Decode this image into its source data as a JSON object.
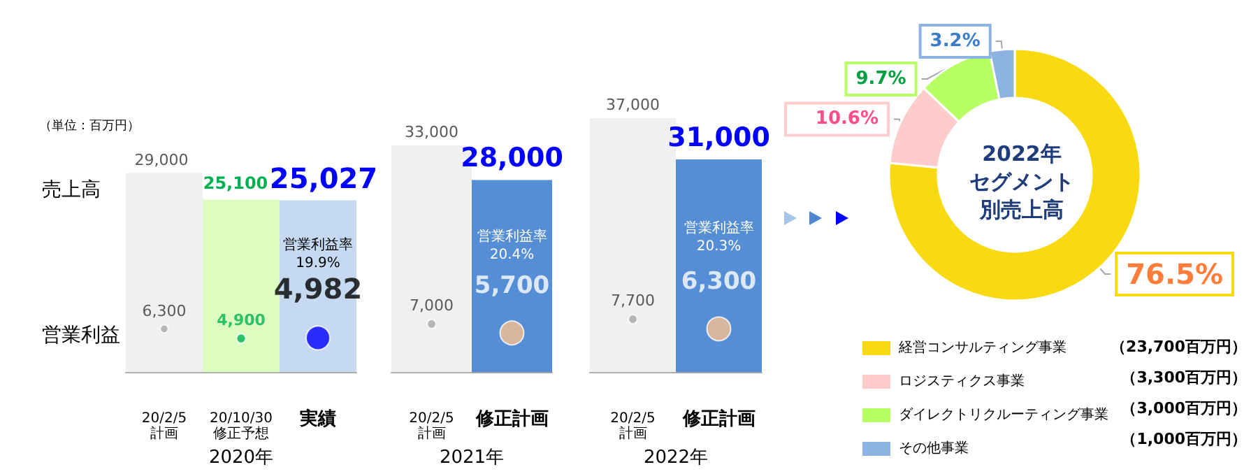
{
  "chart_data": [
    {
      "type": "bar",
      "xlabel": "2020年",
      "categories": [
        "20/2/5\n計画",
        "20/10/30\n修正予想",
        "実績"
      ],
      "tick_labels": "x",
      "marker": "circle",
      "series": [
        {
          "name": "売上高",
          "type": "bar",
          "colors": [
            "#f0f0f0",
            "#ddfcc0",
            "#c5d9f1"
          ],
          "values": [
            29000,
            25100,
            25027
          ],
          "value_labels": [
            "29,000",
            "25,100",
            "25,027"
          ]
        },
        {
          "type": "scatter",
          "x": [
            "20/2/5\n計画",
            "20/10/30\n修正予想",
            "実績"
          ],
          "colors": [
            "#a6a6a6",
            "#00b050",
            "#0000ff"
          ],
          "values": [
            6300,
            4900,
            4982
          ],
          "sizes": [
            0.11,
            0.15,
            1
          ],
          "value_labels": [
            "6,300",
            "4,900",
            "4,982"
          ]
        }
      ],
      "annotations": [
        "（単位：百万円）",
        "営業利益",
        "営業利益率\n19.9%"
      ]
    },
    {
      "type": "bar",
      "xlabel": "2021年",
      "categories": [
        "20/2/5\n計画",
        "修正計画"
      ],
      "tick_labels": "x",
      "marker": "circle",
      "series": [
        {
          "type": "bar",
          "colors": [
            "#f0f0f0",
            "#558ed5"
          ],
          "values": [
            33000,
            28000
          ],
          "value_labels": [
            "33,000",
            "28,000"
          ]
        },
        {
          "type": "scatter",
          "x": [
            "20/2/5\n計画",
            "修正計画"
          ],
          "colors": [
            "#a6a6a6",
            "#f8c18e"
          ],
          "values": [
            7000,
            5700
          ],
          "sizes": [
            0.14,
            1
          ],
          "value_labels": [
            "7,000",
            "5,700"
          ]
        }
      ],
      "annotations": [
        "営業利益率\n20.4%"
      ]
    },
    {
      "type": "bar",
      "xlabel": "2022年",
      "categories": [
        "20/2/5\n計画",
        "修正計画"
      ],
      "tick_labels": "x",
      "marker": "circle",
      "series": [
        {
          "type": "bar",
          "colors": [
            "#f0f0f0",
            "#558ed5"
          ],
          "values": [
            37000,
            31000
          ],
          "value_labels": [
            "37,000",
            "31,000"
          ]
        },
        {
          "type": "scatter",
          "x": [
            "20/2/5\n計画",
            "修正計画"
          ],
          "colors": [
            "#a6a6a6",
            "#f8c18e"
          ],
          "values": [
            7700,
            6300
          ],
          "sizes": [
            0.14,
            1
          ],
          "value_labels": [
            "7,700",
            "6,300"
          ]
        }
      ],
      "annotations": [
        "営業利益率\n20.3%"
      ]
    },
    {
      "type": "donut",
      "title": "2022年セグメント別売上高",
      "legend": "bottom left",
      "categories": [
        "経営コンサルティング事業",
        "ロジスティクス事業",
        "ダイレクトリクルーティング事業",
        "その他事業"
      ],
      "values": [
        76.5,
        10.6,
        9.7,
        3.2
      ],
      "colors": [
        "#f9d90f",
        "#ffcccc",
        "#b8ff66",
        "#8db3e2"
      ],
      "value_labels": [
        "76.5%",
        "10.6%",
        "9.7%",
        "3.2%"
      ],
      "annotations": [
        "（23,700百万円）",
        "（3,300百万円）",
        "（3,000百万円）",
        "（1,000百万円）"
      ]
    }
  ]
}
